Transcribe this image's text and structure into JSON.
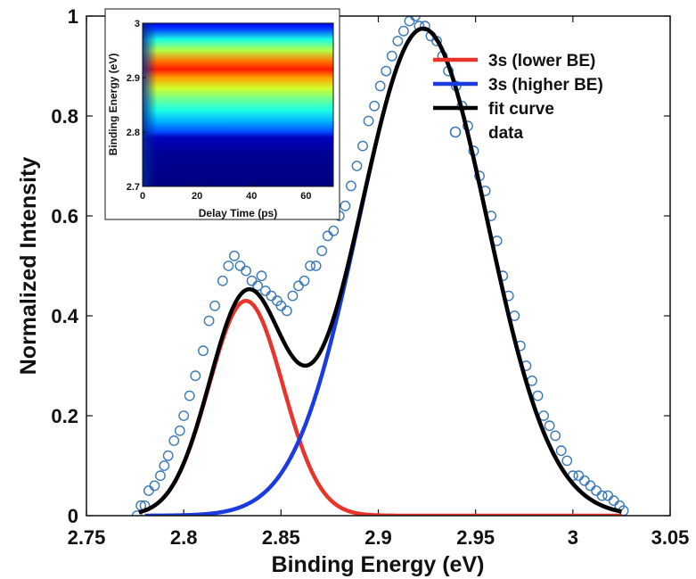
{
  "chart_data": [
    {
      "type": "line",
      "title": "",
      "xlabel": "Binding Energy (eV)",
      "ylabel": "Normalized Intensity",
      "xlim": [
        2.75,
        3.05
      ],
      "ylim": [
        0,
        1
      ],
      "xticks": [
        "2.75",
        "2.8",
        "2.85",
        "2.9",
        "2.95",
        "3",
        "3.05"
      ],
      "yticks": [
        "0",
        "0.2",
        "0.4",
        "0.6",
        "0.8",
        "1"
      ],
      "legend_position": "top-right",
      "grid": false,
      "components": {
        "lower": {
          "amplitude": 0.43,
          "center": 2.832,
          "sigma": 0.019
        },
        "higher": {
          "amplitude": 0.975,
          "center": 2.923,
          "sigma": 0.033
        }
      },
      "series": [
        {
          "name": "3s (lower BE)",
          "style": "line",
          "color": "#e8352b",
          "x": [
            2.78,
            2.8,
            2.81,
            2.82,
            2.83,
            2.832,
            2.84,
            2.85,
            2.86,
            2.87,
            2.88,
            2.9,
            2.92,
            2.95,
            3.0,
            3.025
          ],
          "y": [
            0.0,
            0.05,
            0.13,
            0.29,
            0.43,
            0.43,
            0.38,
            0.22,
            0.1,
            0.036,
            0.012,
            0.001,
            0.0,
            0.0,
            0.0,
            0.0
          ]
        },
        {
          "name": "3s (higher BE)",
          "style": "line",
          "color": "#1a3be0",
          "x": [
            2.78,
            2.8,
            2.82,
            2.84,
            2.86,
            2.88,
            2.9,
            2.92,
            2.923,
            2.94,
            2.96,
            2.98,
            3.0,
            3.025
          ],
          "y": [
            0.0,
            0.0,
            0.02,
            0.08,
            0.16,
            0.43,
            0.76,
            0.97,
            0.975,
            0.88,
            0.53,
            0.24,
            0.09,
            0.02
          ]
        },
        {
          "name": "fit curve",
          "style": "line",
          "color": "#000000",
          "x": [
            2.777,
            2.8,
            2.82,
            2.83,
            2.84,
            2.85,
            2.86,
            2.88,
            2.9,
            2.92,
            2.923,
            2.94,
            2.96,
            2.98,
            3.0,
            3.025
          ],
          "y": [
            0.03,
            0.12,
            0.32,
            0.44,
            0.49,
            0.45,
            0.43,
            0.58,
            0.8,
            0.97,
            0.975,
            0.88,
            0.53,
            0.24,
            0.09,
            0.02
          ]
        },
        {
          "name": "data",
          "style": "scatter",
          "color": "#3a78b8",
          "x": [
            2.776,
            2.778,
            2.78,
            2.782,
            2.785,
            2.788,
            2.79,
            2.792,
            2.795,
            2.798,
            2.8,
            2.803,
            2.806,
            2.81,
            2.813,
            2.816,
            2.82,
            2.823,
            2.826,
            2.829,
            2.832,
            2.835,
            2.838,
            2.84,
            2.842,
            2.845,
            2.848,
            2.85,
            2.853,
            2.856,
            2.859,
            2.862,
            2.865,
            2.868,
            2.871,
            2.874,
            2.877,
            2.88,
            2.883,
            2.886,
            2.889,
            2.892,
            2.895,
            2.898,
            2.901,
            2.904,
            2.907,
            2.91,
            2.913,
            2.916,
            2.919,
            2.921,
            2.924,
            2.927,
            2.93,
            2.933,
            2.936,
            2.94,
            2.943,
            2.946,
            2.949,
            2.952,
            2.955,
            2.958,
            2.961,
            2.964,
            2.967,
            2.97,
            2.973,
            2.976,
            2.979,
            2.982,
            2.985,
            2.988,
            2.991,
            2.994,
            2.997,
            3.0,
            3.003,
            3.006,
            3.009,
            3.012,
            3.015,
            3.018,
            3.021,
            3.024,
            3.026
          ],
          "y": [
            0.0,
            0.02,
            0.02,
            0.05,
            0.06,
            0.08,
            0.1,
            0.12,
            0.15,
            0.17,
            0.2,
            0.24,
            0.28,
            0.33,
            0.39,
            0.42,
            0.47,
            0.5,
            0.52,
            0.5,
            0.49,
            0.47,
            0.46,
            0.48,
            0.45,
            0.44,
            0.43,
            0.42,
            0.41,
            0.44,
            0.46,
            0.47,
            0.5,
            0.5,
            0.53,
            0.56,
            0.57,
            0.6,
            0.62,
            0.66,
            0.7,
            0.74,
            0.79,
            0.82,
            0.86,
            0.89,
            0.92,
            0.95,
            0.97,
            0.99,
            1.0,
            0.98,
            0.98,
            0.96,
            0.95,
            0.92,
            0.89,
            0.86,
            0.82,
            0.78,
            0.73,
            0.68,
            0.65,
            0.6,
            0.55,
            0.48,
            0.44,
            0.4,
            0.34,
            0.3,
            0.27,
            0.24,
            0.2,
            0.18,
            0.16,
            0.13,
            0.11,
            0.08,
            0.08,
            0.07,
            0.06,
            0.05,
            0.04,
            0.04,
            0.03,
            0.02,
            0.01
          ]
        }
      ]
    },
    {
      "type": "heatmap",
      "title": "",
      "xlabel": "Delay Time (ps)",
      "ylabel": "Binding Energy (eV)",
      "xlim": [
        0,
        70
      ],
      "ylim": [
        2.7,
        3.0
      ],
      "xticks": [
        "0",
        "20",
        "40",
        "60"
      ],
      "yticks": [
        "2.7",
        "2.8",
        "2.9",
        "3"
      ],
      "colormap": "jet",
      "energy_profile": {
        "y": [
          2.7,
          2.76,
          2.79,
          2.8,
          2.82,
          2.84,
          2.86,
          2.88,
          2.9,
          2.915,
          2.93,
          2.95,
          2.97,
          2.99,
          3.0
        ],
        "level": [
          0.0,
          0.02,
          0.06,
          0.2,
          0.3,
          0.4,
          0.48,
          0.58,
          0.72,
          0.85,
          0.76,
          0.55,
          0.4,
          0.18,
          0.12
        ]
      },
      "onset_ps": 3
    }
  ]
}
